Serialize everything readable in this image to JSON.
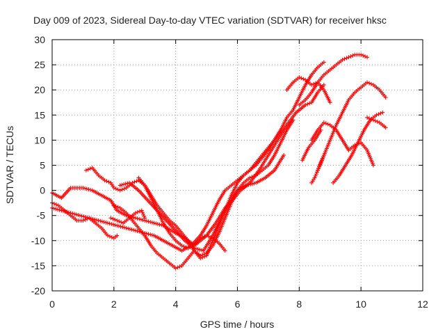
{
  "chart_data": {
    "type": "scatter",
    "title": "Day 009 of 2023, Sidereal Day-to-day VTEC variation (SDTVAR) for receiver hksc",
    "xlabel": "GPS time / hours",
    "ylabel": "SDTVAR / TECUs",
    "xlim": [
      0,
      12
    ],
    "ylim": [
      -20,
      30
    ],
    "xticks": [
      "0",
      "2",
      "4",
      "6",
      "8",
      "10",
      "12"
    ],
    "yticks": [
      "-20",
      "-15",
      "-10",
      "-5",
      "0",
      "5",
      "10",
      "15",
      "20",
      "25",
      "30"
    ],
    "grid": true,
    "marker": "plus",
    "color": "#ff0000",
    "series": [
      {
        "x": [
          0.0,
          0.3,
          0.6,
          1.0,
          1.3,
          1.6,
          1.9,
          2.1,
          2.4,
          2.7,
          3.0,
          3.3,
          3.6,
          4.0,
          4.3,
          4.6,
          5.0,
          5.3,
          5.6,
          5.9,
          6.1,
          6.4,
          6.7,
          7.0,
          7.3,
          7.6,
          7.9,
          8.2,
          8.4,
          8.6,
          8.8
        ],
        "y": [
          -0.5,
          -1.5,
          0.5,
          0.5,
          0,
          -1,
          -2,
          -4,
          -5,
          -5.5,
          -6,
          -6.5,
          -7,
          -8.5,
          -9.5,
          -11,
          -9,
          -6.5,
          -3.5,
          -1.5,
          0,
          1.5,
          4,
          7,
          10,
          13,
          15.5,
          17,
          17.5,
          19.5,
          21
        ]
      },
      {
        "x": [
          7.6,
          7.8,
          8.0,
          8.2,
          8.4,
          8.6,
          8.8,
          9.0
        ],
        "y": [
          20,
          21.5,
          22.5,
          22,
          21,
          21.5,
          20,
          17.5
        ]
      },
      {
        "x": [
          1.1,
          1.3,
          1.5,
          1.7,
          1.9,
          2.0,
          2.2,
          2.4,
          2.6,
          2.8,
          3.0,
          3.2,
          3.4,
          3.6,
          3.8,
          4.0,
          4.2,
          4.4,
          4.6,
          4.8,
          5.0,
          5.2,
          5.4,
          5.6,
          5.8,
          6.0,
          6.2,
          6.4,
          6.6,
          6.8,
          7.0,
          7.2,
          7.4,
          7.6,
          7.8,
          8.0,
          8.2,
          8.4,
          8.6,
          8.8
        ],
        "y": [
          4,
          4.5,
          3,
          2,
          1.5,
          0.5,
          0,
          0.5,
          1.5,
          2,
          1,
          -1,
          -3,
          -4.5,
          -6,
          -7,
          -8.5,
          -10,
          -12,
          -13.5,
          -13,
          -10,
          -7,
          -4,
          -1,
          1.5,
          3,
          4,
          5,
          6.5,
          8,
          10,
          12,
          14.5,
          16,
          18.5,
          21,
          23,
          24.5,
          25.5
        ]
      },
      {
        "x": [
          0.0,
          0.2,
          0.4,
          0.6,
          0.8,
          1.0,
          1.2,
          1.4,
          1.6,
          1.8,
          2.0,
          2.1
        ],
        "y": [
          -2.5,
          -3,
          -4,
          -5,
          -6,
          -6,
          -5.5,
          -6.5,
          -7.5,
          -9,
          -9.5,
          -9
        ]
      },
      {
        "x": [
          2.0,
          2.2,
          2.4,
          2.6,
          2.8,
          3.0,
          3.2,
          3.4,
          3.6,
          3.8,
          4.0,
          4.2,
          4.4,
          4.6,
          4.8,
          5.0,
          5.2,
          5.4,
          5.6,
          5.8,
          6.0,
          6.2,
          6.4,
          6.6,
          6.8,
          7.0,
          7.2,
          7.4,
          7.6,
          7.8
        ],
        "y": [
          -3,
          -3.5,
          -4.5,
          -6,
          -7.5,
          -9,
          -11,
          -12.5,
          -13.5,
          -14.5,
          -15.5,
          -15,
          -13.5,
          -12,
          -13,
          -12.5,
          -11,
          -8.5,
          -5.5,
          -2.5,
          0,
          1.5,
          2.5,
          3,
          4,
          5,
          7,
          9.5,
          12,
          14
        ]
      },
      {
        "x": [
          0.0,
          0.3,
          0.6,
          0.9,
          1.2,
          1.5,
          1.8,
          2.1,
          2.4,
          2.7,
          3.0,
          3.3,
          3.6,
          3.9,
          4.2,
          4.5,
          4.8,
          5.0,
          5.2,
          5.4,
          5.6,
          5.8,
          6.0,
          6.2,
          6.4,
          6.6,
          6.8,
          7.0,
          7.2,
          7.4
        ],
        "y": [
          -3.5,
          -4,
          -4.5,
          -5,
          -5.5,
          -6,
          -6.5,
          -7,
          -7.5,
          -8,
          -8.5,
          -9,
          -10,
          -11,
          -12,
          -11,
          -9,
          -7,
          -4.5,
          -2,
          0,
          1,
          2,
          3,
          4,
          5.5,
          7,
          8.5,
          10,
          12
        ]
      },
      {
        "x": [
          2.2,
          2.5,
          2.8,
          3.1,
          3.4,
          3.7,
          4.0,
          4.3,
          4.6,
          4.9,
          5.2,
          5.5,
          5.8,
          6.0,
          6.3,
          6.6,
          6.9,
          7.2,
          7.5
        ],
        "y": [
          1,
          1.5,
          0,
          -2,
          -4,
          -6,
          -8,
          -10,
          -11.5,
          -12,
          -9,
          -5,
          -2,
          0,
          1,
          1.5,
          2.5,
          4,
          7
        ]
      },
      {
        "x": [
          2.8,
          3.0,
          3.2,
          3.4,
          3.6,
          3.8,
          4.0,
          4.2,
          4.4,
          4.6,
          4.8,
          5.0,
          5.2,
          5.4,
          5.6
        ],
        "y": [
          2.5,
          1,
          -1.5,
          -4,
          -6.5,
          -8.5,
          -10,
          -11,
          -11.5,
          -11,
          -9.5,
          -9,
          -9.5,
          -10.5,
          -12
        ]
      },
      {
        "x": [
          1.9,
          2.1,
          2.3,
          2.5,
          2.7,
          2.9,
          3.0
        ],
        "y": [
          -5.5,
          -6,
          -6.5,
          -5.5,
          -4.5,
          -4,
          -5.5
        ]
      },
      {
        "x": [
          8.6,
          8.8,
          9.0,
          9.2,
          9.4,
          9.6,
          9.8,
          10.0,
          10.2,
          10.4,
          10.6,
          10.8
        ],
        "y": [
          4,
          7,
          10,
          13,
          15.5,
          18,
          19.5,
          20.5,
          21.5,
          21,
          20,
          18.5
        ]
      },
      {
        "x": [
          8.4,
          8.6,
          8.8,
          9.0,
          9.2,
          9.4,
          9.6,
          9.8,
          10.0,
          10.2,
          10.4
        ],
        "y": [
          10,
          12,
          13.5,
          13,
          12,
          10,
          8,
          9,
          9.5,
          8,
          5
        ]
      },
      {
        "x": [
          8.1,
          8.3,
          8.5,
          8.7
        ],
        "y": [
          6,
          8.5,
          10,
          12
        ]
      },
      {
        "x": [
          8.0,
          8.2,
          8.4,
          8.6,
          8.8,
          9.0,
          9.2,
          9.4,
          9.6,
          9.8,
          10.0,
          10.2
        ],
        "y": [
          17,
          18,
          19.5,
          21.5,
          23,
          24,
          25,
          26,
          26.5,
          27,
          27,
          26.5
        ]
      },
      {
        "x": [
          9.1,
          9.3,
          9.5,
          9.7,
          9.9,
          10.1,
          10.3,
          10.5,
          10.7
        ],
        "y": [
          1.5,
          3,
          5,
          7,
          9.5,
          12,
          14,
          15,
          15.5
        ]
      },
      {
        "x": [
          10.2,
          10.4,
          10.6,
          10.8
        ],
        "y": [
          14.5,
          14,
          13.5,
          12.5
        ]
      },
      {
        "x": [
          8.4,
          8.5,
          8.6,
          8.7,
          8.8
        ],
        "y": [
          1.5,
          2.5,
          4,
          5.5,
          7
        ]
      }
    ]
  }
}
